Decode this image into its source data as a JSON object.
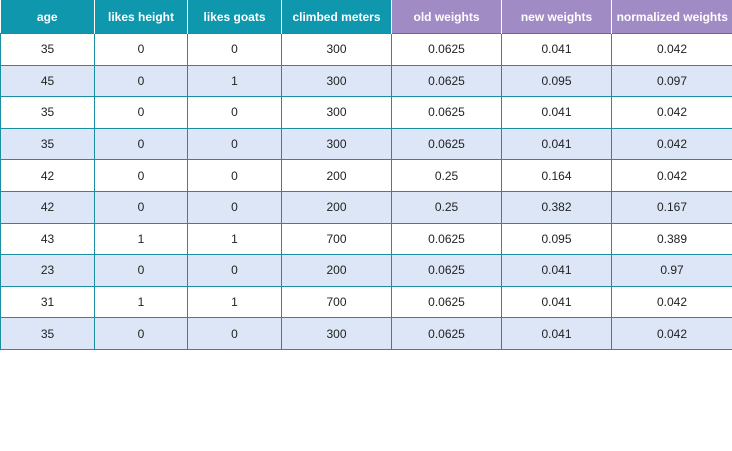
{
  "table": {
    "columns": [
      {
        "label": "age",
        "group": "features",
        "color": "#0e97ad"
      },
      {
        "label": "likes height",
        "group": "features",
        "color": "#0e97ad"
      },
      {
        "label": "likes goats",
        "group": "features",
        "color": "#0e97ad"
      },
      {
        "label": "climbed meters",
        "group": "features",
        "color": "#0e97ad"
      },
      {
        "label": "old weights",
        "group": "weights",
        "color": "#a08bc5"
      },
      {
        "label": "new weights",
        "group": "weights",
        "color": "#a08bc5"
      },
      {
        "label": "normalized weights",
        "group": "weights",
        "color": "#a08bc5"
      }
    ],
    "rows": [
      [
        "35",
        "0",
        "0",
        "300",
        "0.0625",
        "0.041",
        "0.042"
      ],
      [
        "45",
        "0",
        "1",
        "300",
        "0.0625",
        "0.095",
        "0.097"
      ],
      [
        "35",
        "0",
        "0",
        "300",
        "0.0625",
        "0.041",
        "0.042"
      ],
      [
        "35",
        "0",
        "0",
        "300",
        "0.0625",
        "0.041",
        "0.042"
      ],
      [
        "42",
        "0",
        "0",
        "200",
        "0.25",
        "0.164",
        "0.042"
      ],
      [
        "42",
        "0",
        "0",
        "200",
        "0.25",
        "0.382",
        "0.167"
      ],
      [
        "43",
        "1",
        "1",
        "700",
        "0.0625",
        "0.095",
        "0.389"
      ],
      [
        "23",
        "0",
        "0",
        "200",
        "0.0625",
        "0.041",
        "0.97"
      ],
      [
        "31",
        "1",
        "1",
        "700",
        "0.0625",
        "0.041",
        "0.042"
      ],
      [
        "35",
        "0",
        "0",
        "300",
        "0.0625",
        "0.041",
        "0.042"
      ]
    ],
    "colors": {
      "feature_header": "#0e97ad",
      "weight_header": "#a08bc5",
      "row_alt": "#dce6f7",
      "border": "#1a8fa3"
    }
  }
}
